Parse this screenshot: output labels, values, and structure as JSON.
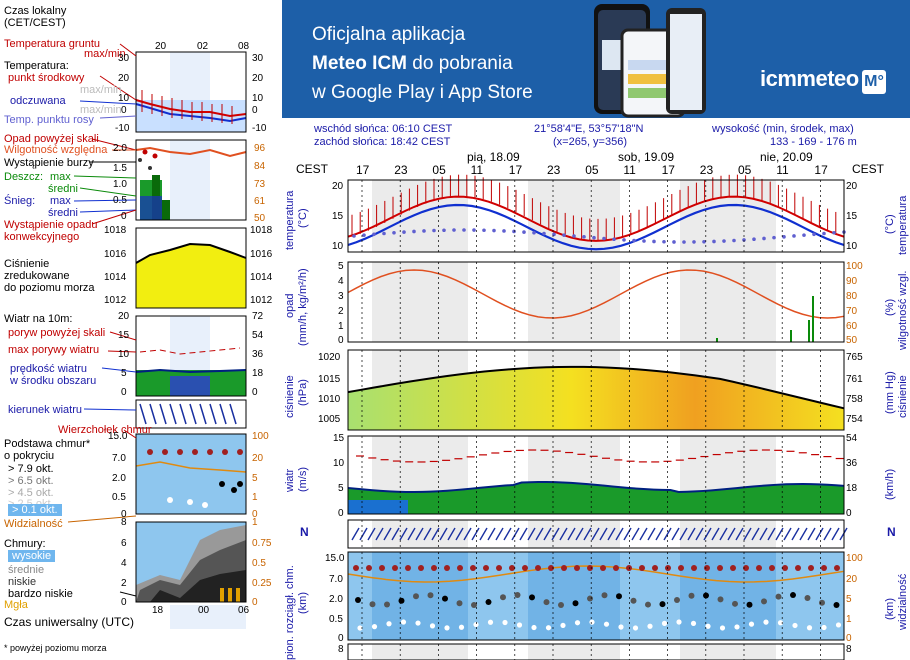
{
  "legend": {
    "time_local": "Czas lokalny",
    "time_local_zone": "(CET/CEST)",
    "hours_top": [
      "20",
      "02",
      "08"
    ],
    "hours_bottom": [
      "18",
      "00",
      "06"
    ],
    "ground_temp": "Temperatura gruntu",
    "ground_temp_sub": "max/min",
    "temperature": "Temperatura:",
    "mid_point": "punkt środkowy",
    "maxmin": "max/min",
    "perceived": "odczuwana",
    "dew_point": "Temp. punktu rosy",
    "temp_axis_left": [
      "30",
      "20",
      "10",
      "0",
      "-10"
    ],
    "temp_axis_right": [
      "30",
      "20",
      "10",
      "0",
      "-10"
    ],
    "precip_above": "Opad powyżej skali",
    "humidity": "Wilgotność względna",
    "storm": "Wystąpienie burzy",
    "rain": "Deszcz:",
    "rain_max": "max",
    "rain_mean": "średni",
    "snow": "Śnieg:",
    "snow_max": "max",
    "snow_mean": "średni",
    "precip_occ": "Wystąpienie opadu",
    "precip_conv": "konwekcyjnego",
    "precip_axis_left": [
      "2.0",
      "1.5",
      "1.0",
      "0.5",
      "0"
    ],
    "precip_axis_right": [
      "96",
      "84",
      "73",
      "61",
      "50"
    ],
    "pressure_1": "Ciśnienie",
    "pressure_2": "zredukowane",
    "pressure_3": "do poziomu morza",
    "pressure_axis": [
      "1018",
      "1016",
      "1014",
      "1012"
    ],
    "wind_10m": "Wiatr na 10m:",
    "gust_above": "poryw powyżej skali",
    "gust_max": "max porywy wiatru",
    "wind_speed": "prędkość wiatru",
    "wind_center": "w środku obszaru",
    "wind_axis_left": [
      "20",
      "15",
      "10",
      "5",
      "0"
    ],
    "wind_axis_right": [
      "72",
      "54",
      "36",
      "18",
      "0"
    ],
    "wind_dir": "kierunek wiatru",
    "cloud_top": "Wierzchołek chmur",
    "cloud_base_1": "Podstawa chmur*",
    "cloud_base_2": "o pokryciu",
    "okt_1": "> 7.9 okt.",
    "okt_2": "> 6.5 okt.",
    "okt_3": "> 4.5 okt.",
    "okt_4": "> 2.5 okt.",
    "okt_5": "> 0.1 okt.",
    "cloud_axis_left": [
      "15.0",
      "7.0",
      "2.0",
      "0.5",
      "0"
    ],
    "cloud_axis_right": [
      "100",
      "20",
      "5",
      "1",
      "0"
    ],
    "visibility": "Widzialność",
    "clouds": "Chmury:",
    "cl_high": "wysokie",
    "cl_mid": "średnie",
    "cl_low": "niskie",
    "cl_vlow": "bardzo niskie",
    "fog": "Mgła",
    "cl_axis_left": [
      "8",
      "6",
      "4",
      "2",
      "0"
    ],
    "cl_axis_right": [
      "1",
      "0.75",
      "0.5",
      "0.25",
      "0"
    ],
    "utc": "Czas uniwersalny (UTC)",
    "footnote": "* powyżej poziomu morza"
  },
  "banner": {
    "line1": "Oficjalna aplikacja",
    "line2_bold": "Meteo ICM",
    "line2_rest": " do pobrania",
    "line3": "w Google Play i App Store",
    "logo": "icmmeteo",
    "logo_badge": "M°"
  },
  "info": {
    "sunrise": "wschód słońca: 06:10 CEST",
    "sunset": "zachód słońca: 18:42 CEST",
    "coords": "21°58'4\"E, 53°57'18\"N",
    "grid": "(x=265,  y=356)",
    "elev_label": "wysokość (min, środek, max)",
    "elev": "133 - 169 - 176 m"
  },
  "header": {
    "tz": "CEST",
    "hours": [
      "17",
      "23",
      "05",
      "11",
      "17",
      "23",
      "05",
      "11",
      "17",
      "23",
      "05",
      "11",
      "17"
    ],
    "day1": "pią, 18.09",
    "day2": "sob, 19.09",
    "day3": "nie, 20.09"
  },
  "panels": {
    "temp_label_left": "temperatura",
    "temp_unit_left": "(°C)",
    "temp_label_right": "temperatura",
    "temp_unit_right": "(°C)",
    "temp_axis": [
      "20",
      "15",
      "10"
    ],
    "precip_label": "opad",
    "precip_unit": "(mm/h, kg/m²/h)",
    "precip_axis": [
      "5",
      "4",
      "3",
      "2",
      "1",
      "0"
    ],
    "hum_label": "wilgotność wzgl.",
    "hum_unit": "(%)",
    "hum_axis": [
      "100",
      "90",
      "80",
      "70",
      "60",
      "50"
    ],
    "press_label": "ciśnienie",
    "press_unit": "(hPa)",
    "press_axis": [
      "1020",
      "1015",
      "1010",
      "1005"
    ],
    "press_label_r": "ciśnienie",
    "press_unit_r": "(mm Hg)",
    "press_axis_r": [
      "765",
      "761",
      "758",
      "754"
    ],
    "wind_label": "wiatr",
    "wind_unit": "(m/s)",
    "wind_axis": [
      "15",
      "10",
      "5",
      "0"
    ],
    "wind_unit_r": "(km/h)",
    "wind_axis_r": [
      "54",
      "36",
      "18",
      "0"
    ],
    "cloud_label": "pion. rozciągł. chm.",
    "cloud_unit": "(km)",
    "vis_label": "widzialność",
    "vis_unit": "(km)",
    "cloud_axis": [
      "15.0",
      "7.0",
      "2.0",
      "0.5",
      "0"
    ],
    "vis_axis": [
      "100",
      "20",
      "5",
      "1",
      "0"
    ],
    "bottom_axis": "8",
    "compass": "N"
  },
  "colors": {
    "temp": "#d00000",
    "perceived": "#1030d0",
    "dew": "#6060d0",
    "humidity": "#e05020",
    "pressure_low": "#a8e070",
    "pressure_high": "#f0a020",
    "wind_fill": "#1a9a2a",
    "wind_line": "#002080",
    "cloud_bg": "#8ec6ee",
    "banner": "#1d5fa8"
  }
}
